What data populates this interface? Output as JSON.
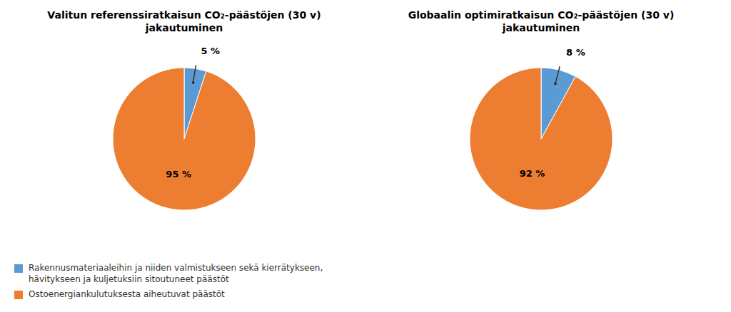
{
  "chart_data": [
    {
      "type": "pie",
      "title": "Valitun referenssiratkaisun CO₂-päästöjen (30 v)\njakautuminen",
      "categories": [
        "Rakennusmateriaaleihin ja niiden valmistukseen sekä kierrätykseen,\nhävitykseen ja kuljetuksiin sitoutuneet päästöt",
        "Ostoenergiankulutuksesta aiheutuvat päästöt"
      ],
      "values": [
        5,
        95
      ],
      "value_labels": [
        "5 %",
        "95 %"
      ],
      "colors": [
        "#5B9BD5",
        "#ED7D31"
      ],
      "data_labels": true,
      "legend": "lower left"
    },
    {
      "type": "pie",
      "title": "Globaalin optimiratkaisun CO₂-päästöjen (30 v)\njakautuminen",
      "categories": [
        "Rakennusmateriaaleihin ja niiden valmistukseen sekä kierrätykseen,\nhävitykseen ja kuljetuksiin sitoutuneet päästöt",
        "Ostoenergiankulutuksesta aiheutuvat päästöt"
      ],
      "values": [
        8,
        92
      ],
      "value_labels": [
        "8 %",
        "92 %"
      ],
      "colors": [
        "#5B9BD5",
        "#ED7D31"
      ],
      "data_labels": true,
      "legend": "lower left"
    }
  ]
}
